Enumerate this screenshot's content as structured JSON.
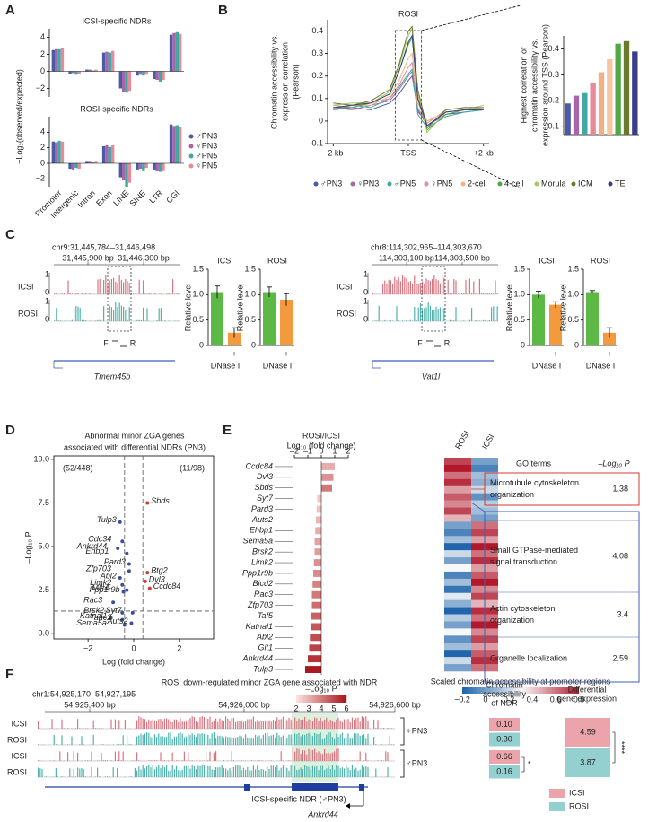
{
  "panel_labels": [
    "A",
    "B",
    "C",
    "D",
    "E",
    "F"
  ],
  "chart_data": [
    {
      "type": "bar",
      "title": "ICSI-specific NDRs",
      "ylim": [
        -3,
        5
      ],
      "yticks": [
        {
          "value": -2,
          "label": "−2"
        },
        0,
        2,
        4
      ],
      "series": [
        {
          "name": "♂PN3",
          "color": "#4b5aa8",
          "values": [
            2.5,
            -0.3,
            0.2,
            2.2,
            -2.0,
            -0.5,
            -0.9,
            4.3
          ]
        },
        {
          "name": "♀PN3",
          "color": "#a866a8",
          "values": [
            2.6,
            -0.2,
            0.2,
            2.3,
            -2.4,
            -0.4,
            -1.0,
            4.5
          ]
        },
        {
          "name": "♂PN5",
          "color": "#3fa8a0",
          "values": [
            2.6,
            -0.4,
            0.1,
            2.2,
            -2.5,
            -0.5,
            -1.2,
            4.6
          ]
        },
        {
          "name": "♀PN5",
          "color": "#e58a98",
          "values": [
            2.7,
            -0.3,
            0.2,
            2.4,
            -2.3,
            -0.4,
            -1.0,
            4.4
          ]
        }
      ]
    },
    {
      "type": "bar",
      "title": "ROSI-specific NDRs",
      "ylabel": "−Log₂(observed/expected)",
      "categories": [
        "Promoter",
        "Intergenic",
        "Intron",
        "Exon",
        "LINE",
        "SINE",
        "LTR",
        "CGI"
      ],
      "ylim": [
        -3,
        6
      ],
      "yticks": [
        {
          "value": -2,
          "label": "−2"
        },
        0,
        2,
        4
      ],
      "series": [
        {
          "color": "#4b5aa8",
          "values": [
            2.8,
            -0.7,
            0.3,
            2.2,
            -1.8,
            -0.8,
            -0.8,
            5.0
          ]
        },
        {
          "color": "#a866a8",
          "values": [
            2.7,
            -0.8,
            0.3,
            2.3,
            -2.2,
            -0.7,
            -1.0,
            4.8
          ]
        },
        {
          "color": "#3fa8a0",
          "values": [
            2.9,
            -0.6,
            0.2,
            2.1,
            -3.0,
            -0.9,
            -1.1,
            4.9
          ]
        },
        {
          "color": "#e58a98",
          "values": [
            2.8,
            -0.7,
            0.3,
            2.3,
            -2.5,
            -0.6,
            -0.9,
            4.7
          ]
        }
      ]
    },
    {
      "type": "line",
      "title": "ROSI",
      "ylabel": [
        "Chromatin accessibility vs.",
        "expression correlation",
        "(Pearson)"
      ],
      "x": [
        -2,
        -1.5,
        -1,
        -0.5,
        -0.25,
        0,
        0.1,
        0.25,
        0.5,
        1,
        1.5,
        2
      ],
      "xlim": [
        -2.15,
        2.15
      ],
      "xticks": [
        {
          "value": -2,
          "label": "−2 kb"
        },
        {
          "value": 0,
          "label": "TSS"
        },
        {
          "value": 2,
          "label": "+2 kb"
        }
      ],
      "ylim": [
        -0.1,
        0.45
      ],
      "yticks": [
        {
          "value": -0.1,
          "label": "–0.1"
        },
        0,
        0.1,
        0.2,
        0.3,
        0.4
      ],
      "highlight_x": [
        -0.35,
        0.35
      ],
      "series": [
        {
          "name": "♂PN3",
          "color": "#4b5aa8",
          "values": [
            0.05,
            0.06,
            0.05,
            0.08,
            0.12,
            0.18,
            0.2,
            0.05,
            -0.02,
            0.03,
            0.04,
            0.05
          ]
        },
        {
          "name": "♀PN3",
          "color": "#a866a8",
          "values": [
            0.06,
            0.05,
            0.07,
            0.09,
            0.14,
            0.2,
            0.22,
            0.04,
            0.0,
            0.04,
            0.05,
            0.05
          ]
        },
        {
          "name": "♂PN5",
          "color": "#3fa8a0",
          "values": [
            0.05,
            0.07,
            0.06,
            0.1,
            0.15,
            0.21,
            0.23,
            0.03,
            -0.03,
            0.02,
            0.04,
            0.05
          ]
        },
        {
          "name": "♀PN5",
          "color": "#e58a98",
          "values": [
            0.07,
            0.06,
            0.08,
            0.1,
            0.16,
            0.24,
            0.26,
            0.06,
            -0.01,
            0.05,
            0.06,
            0.06
          ]
        },
        {
          "name": "2-cell",
          "color": "#f2b184",
          "values": [
            0.06,
            0.07,
            0.07,
            0.11,
            0.18,
            0.28,
            0.3,
            0.08,
            0.0,
            0.04,
            0.05,
            0.06
          ]
        },
        {
          "name": "4-cell",
          "color": "#4fa845",
          "values": [
            0.06,
            0.06,
            0.08,
            0.12,
            0.22,
            0.34,
            0.37,
            0.1,
            -0.04,
            0.03,
            0.05,
            0.05
          ]
        },
        {
          "name": "Morula",
          "color": "#a6c85e",
          "values": [
            0.07,
            0.08,
            0.08,
            0.13,
            0.24,
            0.38,
            0.41,
            0.12,
            -0.05,
            0.04,
            0.05,
            0.07
          ]
        },
        {
          "name": "ICM",
          "color": "#6b7a2a",
          "values": [
            0.08,
            0.07,
            0.09,
            0.14,
            0.25,
            0.4,
            0.42,
            0.14,
            -0.03,
            0.05,
            0.06,
            0.06
          ]
        },
        {
          "name": "TE",
          "color": "#3a3c8c",
          "values": [
            0.06,
            0.07,
            0.08,
            0.12,
            0.22,
            0.35,
            0.38,
            0.1,
            -0.02,
            0.04,
            0.05,
            0.05
          ]
        }
      ]
    },
    {
      "type": "bar",
      "ylabel": [
        "Highest correlation of",
        "chromatin accessibility vs.",
        "expression around TSS (Pearson)"
      ],
      "ylim": [
        0.07,
        0.45
      ],
      "yticks": [
        0.1,
        0.2,
        0.3,
        0.4
      ],
      "values": [
        0.19,
        0.22,
        0.23,
        0.27,
        0.31,
        0.36,
        0.42,
        0.43,
        0.39
      ],
      "colors": [
        "#4b5aa8",
        "#a866a8",
        "#3fa8a0",
        "#e58a98",
        "#f2b184",
        "#f5c6a0",
        "#4fa845",
        "#6b7a2a",
        "#3a3c8c"
      ]
    },
    {
      "type": "bar",
      "title": "ICSI",
      "ylabel": "Relative level",
      "xlabel": "DNase I",
      "categories": [
        "−",
        "+"
      ],
      "values": [
        1.05,
        0.25
      ],
      "errors": [
        0.12,
        0.1
      ],
      "colors": [
        "#5cb946",
        "#f39a3f"
      ],
      "ylim": [
        0,
        1.5
      ],
      "yticks": [
        0,
        0.5,
        {
          "value": 1,
          "label": "1.0"
        },
        1.5
      ]
    },
    {
      "type": "bar",
      "title": "ROSI",
      "ylabel": "Relative level",
      "xlabel": "DNase I",
      "categories": [
        "−",
        "+"
      ],
      "values": [
        1.05,
        0.9
      ],
      "errors": [
        0.1,
        0.12
      ],
      "colors": [
        "#5cb946",
        "#f39a3f"
      ],
      "ylim": [
        0,
        1.5
      ],
      "yticks": [
        0,
        0.5,
        {
          "value": 1,
          "label": "1.0"
        },
        1.5
      ]
    },
    {
      "type": "bar",
      "title": "ICSI",
      "ylabel": "Relative level",
      "xlabel": "DNase I",
      "categories": [
        "−",
        "+"
      ],
      "values": [
        1.0,
        0.8
      ],
      "errors": [
        0.07,
        0.06
      ],
      "colors": [
        "#5cb946",
        "#f39a3f"
      ],
      "ylim": [
        0,
        1.5
      ],
      "yticks": [
        0,
        0.5,
        {
          "value": 1,
          "label": "1.0"
        },
        1.5
      ]
    },
    {
      "type": "bar",
      "title": "ROSI",
      "ylabel": "Relative level",
      "xlabel": "DNase I",
      "categories": [
        "−",
        "+"
      ],
      "values": [
        1.05,
        0.25
      ],
      "errors": [
        0.03,
        0.1
      ],
      "colors": [
        "#5cb946",
        "#f39a3f"
      ],
      "ylim": [
        0,
        1.5
      ],
      "yticks": [
        0,
        0.5,
        {
          "value": 1,
          "label": "1.0"
        },
        1.5
      ]
    },
    {
      "type": "scatter",
      "title": [
        "Abnormal minor ZGA genes",
        "associated with differential NDRs (PN3)"
      ],
      "xlabel": "Log (fold change)",
      "ylabel": "–Log₁₀ P",
      "annotations": [
        "(52/448)",
        "(11/98)"
      ],
      "xlim": [
        -3.5,
        3.5
      ],
      "xticks": [
        {
          "value": -2,
          "label": "−2"
        },
        0,
        2
      ],
      "ylim": [
        -0.3,
        10.2
      ],
      "yticks": [
        {
          "value": 0,
          "label": "0.0"
        },
        2.5,
        {
          "value": 5,
          "label": "5.0"
        },
        7.5,
        {
          "value": 10,
          "label": "10.0"
        }
      ],
      "thresholds": {
        "x": [
          -0.4,
          0.4
        ],
        "y": 1.3
      },
      "series": [
        {
          "color": "#3a4f9e",
          "labels": [
            "Tulp3",
            "Cdc34",
            "Ehbp1",
            "Pard3",
            "Ankrd44",
            "Zfp703",
            "Abl2",
            "Limk2",
            "Mllt4",
            "Ppp1r9b",
            "Rac3",
            "Brsk2",
            "Katnal1",
            "Tanc2",
            "Sema5a",
            "Auts2",
            "Syt7"
          ],
          "x": [
            -0.6,
            -0.5,
            -0.3,
            -0.2,
            -0.7,
            -0.2,
            -0.6,
            -0.5,
            -0.3,
            -0.45,
            -0.9,
            -0.5,
            -1.0,
            -0.5,
            -0.4,
            -0.1,
            -0.05
          ],
          "values": [
            6.4,
            5.3,
            4.6,
            4.0,
            4.9,
            3.6,
            3.2,
            2.8,
            2.5,
            2.4,
            1.8,
            1.2,
            0.9,
            0.8,
            0.5,
            0.6,
            1.2
          ]
        },
        {
          "color": "#d43a2c",
          "labels": [
            "Sbds",
            "Btg2",
            "Dvl3",
            "Ccdc84"
          ],
          "x": [
            0.6,
            0.6,
            0.5,
            0.7
          ],
          "values": [
            7.5,
            3.5,
            3.0,
            2.6
          ]
        }
      ]
    },
    {
      "type": "barh",
      "title": "ROSI/ICSI",
      "xlabel": "Log₁₀ (fold change)",
      "xlim": [
        -2,
        2
      ],
      "xticks": [
        {
          "value": -2,
          "label": "–2"
        },
        {
          "value": -1,
          "label": "–1"
        },
        0,
        1,
        2
      ],
      "categories": [
        "Ccdc84",
        "Dvl3",
        "Sbds",
        "Syt7",
        "Pard3",
        "Auts2",
        "Ehbp1",
        "Sema5a",
        "Brsk2",
        "Limk2",
        "Ppp1r9b",
        "Bicd2",
        "Rac3",
        "Zfp703",
        "Taf5",
        "Katnal1",
        "Abl2",
        "Git1",
        "Ankrd44",
        "Tulp3"
      ],
      "label_colors": [
        "#d43a2c",
        "#d43a2c",
        "#d43a2c",
        "#3a4f9e",
        "#3a4f9e",
        "#3a4f9e",
        "#3a4f9e",
        "#3a4f9e",
        "#3a4f9e",
        "#3a4f9e",
        "#3a4f9e",
        "#3a4f9e",
        "#3a4f9e",
        "#3a4f9e",
        "#3a4f9e",
        "#3a4f9e",
        "#3a4f9e",
        "#3a4f9e",
        "#3a4f9e",
        "#3a4f9e"
      ],
      "values": [
        1.0,
        0.9,
        0.8,
        -0.3,
        -0.35,
        -0.4,
        -0.45,
        -0.5,
        -0.5,
        -0.55,
        -0.6,
        -0.65,
        -0.7,
        -0.7,
        -0.75,
        -0.8,
        -0.85,
        -0.9,
        -1.0,
        -1.2
      ],
      "neg_log10_p": [
        3,
        3.5,
        4,
        2.5,
        2.6,
        2.8,
        3,
        3.2,
        3.3,
        3.5,
        3.6,
        3.8,
        4,
        4.2,
        4.4,
        4.6,
        4.8,
        5,
        5.3,
        5.8
      ],
      "colorbar": {
        "label": "–Log₁₀ P",
        "lim": [
          2,
          6
        ],
        "ticks": [
          2,
          3,
          4,
          5,
          6
        ]
      }
    },
    {
      "type": "heatmap",
      "columns": [
        "ROSI",
        "ICSI"
      ],
      "values": [
        [
          0.7,
          0.0
        ],
        [
          0.8,
          -0.1
        ],
        [
          0.6,
          0.1
        ],
        [
          0.75,
          0.05
        ],
        [
          0.5,
          0.2
        ],
        [
          0.65,
          -0.05
        ],
        [
          0.55,
          0.15
        ],
        [
          0.7,
          0.1
        ],
        [
          0.45,
          0.0
        ],
        [
          0.0,
          0.6
        ],
        [
          -0.1,
          0.7
        ],
        [
          0.1,
          0.5
        ],
        [
          -0.2,
          0.8
        ],
        [
          0.2,
          0.6
        ],
        [
          0.0,
          0.75
        ],
        [
          0.3,
          0.5
        ],
        [
          -0.1,
          0.65
        ],
        [
          0.1,
          0.8
        ],
        [
          -0.15,
          0.55
        ],
        [
          0.25,
          0.7
        ],
        [
          0.05,
          0.45
        ],
        [
          -0.2,
          0.75
        ],
        [
          0.15,
          0.6
        ],
        [
          0.0,
          0.8
        ],
        [
          0.3,
          0.55
        ],
        [
          -0.05,
          0.7
        ],
        [
          0.1,
          0.5
        ],
        [
          -0.2,
          0.65
        ],
        [
          0.2,
          0.75
        ],
        [
          0.0,
          0.6
        ]
      ],
      "colorbar": {
        "label": "Scaled chromatin accessibility at promoter regions",
        "lim": [
          -0.2,
          0.8
        ],
        "ticks": [
          {
            "value": -0.2,
            "label": "−0.2"
          },
          0,
          0.2,
          0.4,
          0.6,
          0.8
        ]
      }
    }
  ],
  "browsers": [
    {
      "region": "chr9:31,445,784–31,446,498",
      "ticks": [
        "31,445,900 bp",
        "31,446,300 bp"
      ],
      "tracks": [
        "ICSI",
        "ROSI"
      ],
      "scale": [
        "1",
        "0"
      ],
      "primers": [
        "F",
        "R"
      ],
      "gene": "Tmem45b"
    },
    {
      "region": "chr8:114,302,965–114,303,670",
      "ticks": [
        "114,303,100 bp",
        "114,303,500 bp"
      ],
      "tracks": [
        "ICSI",
        "ROSI"
      ],
      "scale": [
        "1",
        "0"
      ],
      "primers": [
        "F",
        "R"
      ],
      "gene": "Vat1l"
    }
  ],
  "go_terms": {
    "header": "GO terms",
    "p_header": "–Log₁₀ P",
    "rows": [
      {
        "term": [
          "Microtubule cytoskeleton",
          "organization"
        ],
        "value": 1.38
      },
      {
        "term": [
          "Small GTPase-mediated",
          "signal transduction"
        ],
        "value": 4.08
      },
      {
        "term": [
          "Actin cytoskeleton",
          "organization"
        ],
        "value": 3.4
      },
      {
        "term": [
          "Organelle localization"
        ],
        "value": 2.59
      }
    ]
  },
  "panel_f": {
    "title": "ROSI down-regulated minor ZGA gene associated with NDR",
    "region": "chr1:54,925,170–54,927,195",
    "ticks": [
      "54,925,400 bp",
      "54,926,000 bp",
      "54,926,600 bp"
    ],
    "tracks": [
      "ICSI",
      "ROSI",
      "ICSI",
      "ROSI"
    ],
    "groups": [
      "♀PN3",
      "♂PN3"
    ],
    "ndr_label": "ICSI-specific NDR (♂PN3)",
    "gene": "Ankrd44",
    "accessibility_header": [
      "Chromatin",
      "accessibility",
      "of NDR"
    ],
    "expression_header": [
      "Differential",
      "gene expression"
    ],
    "accessibility": [
      0.1,
      0.3,
      0.66,
      0.16
    ],
    "accessibility_labels": [
      "0.10",
      "0.30",
      "0.66",
      "0.16"
    ],
    "expression": [
      4.59,
      3.87
    ],
    "significance": [
      "*",
      "****"
    ],
    "legend": [
      {
        "name": "ICSI",
        "color": "#eba4aa"
      },
      {
        "name": "ROSI",
        "color": "#93d0cf"
      }
    ]
  }
}
